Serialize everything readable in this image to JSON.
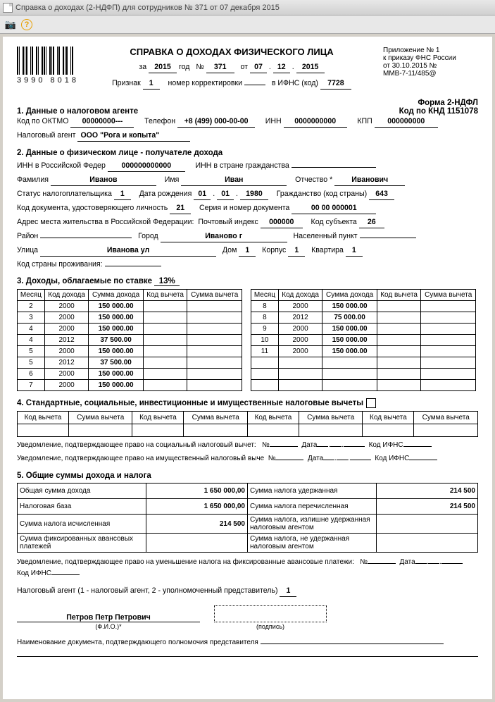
{
  "window": {
    "title": "Справка о доходах (2-НДФП) для сотрудников № 371 от 07 декабря 2015"
  },
  "barcode_number": "3990 8018",
  "header": {
    "title": "СПРАВКА О ДОХОДАХ ФИЗИЧЕСКОГО ЛИЦА",
    "za_label": "за",
    "year": "2015",
    "god_label": "год",
    "num_label": "№",
    "num": "371",
    "ot_label": "от",
    "day": "07",
    "month": "12",
    "year2": "2015",
    "priznak_label": "Признак",
    "priznak": "1",
    "korr_label": "номер корректировки",
    "korr": "",
    "ifns_label": "в ИФНС (код)",
    "ifns": "7728",
    "right1": "Приложение № 1",
    "right2": "к приказу ФНС России",
    "right3": "от 30.10.2015 №",
    "right4": "ММВ-7-11/485@"
  },
  "s1": {
    "title": "1. Данные о налоговом агенте",
    "form_label": "Форма 2-НДФЛ",
    "knd_label": "Код по КНД 1151078",
    "oktmo_label": "Код по ОКТМО",
    "oktmo": "00000000---",
    "tel_label": "Телефон",
    "tel": "+8 (499) 000-00-00",
    "inn_label": "ИНН",
    "inn": "0000000000",
    "kpp_label": "КПП",
    "kpp": "000000000",
    "agent_label": "Налоговый агент",
    "agent": "ООО \"Рога и копыта\""
  },
  "s2": {
    "title": "2. Данные о физическом лице - получателе дохода",
    "inn_rf_label": "ИНН в Российской Федер",
    "inn_rf": "000000000000",
    "inn_ctz_label": "ИНН в стране гражданства",
    "inn_ctz": "",
    "fam_label": "Фамилия",
    "fam": "Иванов",
    "name_label": "Имя",
    "name": "Иван",
    "otch_label": "Отчество *",
    "otch": "Иванович",
    "status_label": "Статус налогоплательщика",
    "status": "1",
    "dob_label": "Дата рождения",
    "dob_d": "01",
    "dob_m": "01",
    "dob_y": "1980",
    "ctz_label": "Гражданство (код страны)",
    "ctz": "643",
    "doccode_label": "Код документа, удостоверяющего личность",
    "doccode": "21",
    "docser_label": "Серия и номер документа",
    "docser": "00 00 000001",
    "addr_label": "Адрес места жительства в Российской Федерации:",
    "postal_label": "Почтовый индекс",
    "postal": "000000",
    "subj_label": "Код субъекта",
    "subj": "26",
    "raion_label": "Район",
    "raion": "",
    "city_label": "Город",
    "city": "Иваново г",
    "settle_label": "Населенный пункт",
    "settle": "",
    "street_label": "Улица",
    "street": "Иванова ул",
    "house_label": "Дом",
    "house": "1",
    "korp_label": "Корпус",
    "korp": "1",
    "flat_label": "Квартира",
    "flat": "1",
    "country_label": "Код страны проживания:",
    "country": ""
  },
  "s3": {
    "title_a": "3. Доходы, облагаемые по ставке",
    "rate": "13%",
    "cols": [
      "Месяц",
      "Код дохода",
      "Сумма дохода",
      "Код вычета",
      "Сумма вычета"
    ],
    "left": [
      [
        "2",
        "2000",
        "150 000.00",
        "",
        ""
      ],
      [
        "3",
        "2000",
        "150 000.00",
        "",
        ""
      ],
      [
        "4",
        "2000",
        "150 000.00",
        "",
        ""
      ],
      [
        "4",
        "2012",
        "37 500.00",
        "",
        ""
      ],
      [
        "5",
        "2000",
        "150 000.00",
        "",
        ""
      ],
      [
        "5",
        "2012",
        "37 500.00",
        "",
        ""
      ],
      [
        "6",
        "2000",
        "150 000.00",
        "",
        ""
      ],
      [
        "7",
        "2000",
        "150 000.00",
        "",
        ""
      ]
    ],
    "right": [
      [
        "8",
        "2000",
        "150 000.00",
        "",
        ""
      ],
      [
        "8",
        "2012",
        "75 000.00",
        "",
        ""
      ],
      [
        "9",
        "2000",
        "150 000.00",
        "",
        ""
      ],
      [
        "10",
        "2000",
        "150 000.00",
        "",
        ""
      ],
      [
        "11",
        "2000",
        "150 000.00",
        "",
        ""
      ],
      [
        "",
        "",
        "",
        "",
        ""
      ],
      [
        "",
        "",
        "",
        "",
        ""
      ],
      [
        "",
        "",
        "",
        "",
        ""
      ]
    ]
  },
  "s4": {
    "title": "4. Стандартные, социальные, инвестиционные и имущественные налоговые вычеты",
    "cols": [
      "Код вычета",
      "Сумма вычета",
      "Код вычета",
      "Сумма вычета",
      "Код вычета",
      "Сумма вычета",
      "Код вычета",
      "Сумма вычета"
    ],
    "uved1_label": "Уведомление, подтверждающее право на социальный налоговый вычет:",
    "uved2_label": "Уведомление, подтверждающее право на имущественный налоговый выче",
    "num_l": "№",
    "date_l": "Дата",
    "ifns_l": "Код ИФНС"
  },
  "s5": {
    "title": "5. Общие суммы дохода и налога",
    "r1a": "Общая сумма дохода",
    "r1av": "1 650 000,00",
    "r1b": "Сумма налога удержанная",
    "r1bv": "214 500",
    "r2a": "Налоговая база",
    "r2av": "1 650 000,00",
    "r2b": "Сумма налога перечисленная",
    "r2bv": "214 500",
    "r3a": "Сумма налога исчисленная",
    "r3av": "214 500",
    "r3b": "Сумма налога, излишне удержанная налоговым агентом",
    "r3bv": "",
    "r4a": "Сумма фиксированных авансовых платежей",
    "r4av": "",
    "r4b": "Сумма налога, не удержанная налоговым агентом",
    "r4bv": "",
    "uved_label": "Уведомление, подтверждающее право на уменьшение налога на фиксированные авансовые платежи:",
    "agent_type_label": "Налоговый агент (1 - налоговый агент, 2 - уполномоченный представитель)",
    "agent_type": "1",
    "sig_name": "Петров Петр Петрович",
    "fio_sub": "(Ф.И.О.)*",
    "sig_sub": "(подпись)",
    "foot": "Наименование документа, подтверждающего полномочия представителя"
  }
}
